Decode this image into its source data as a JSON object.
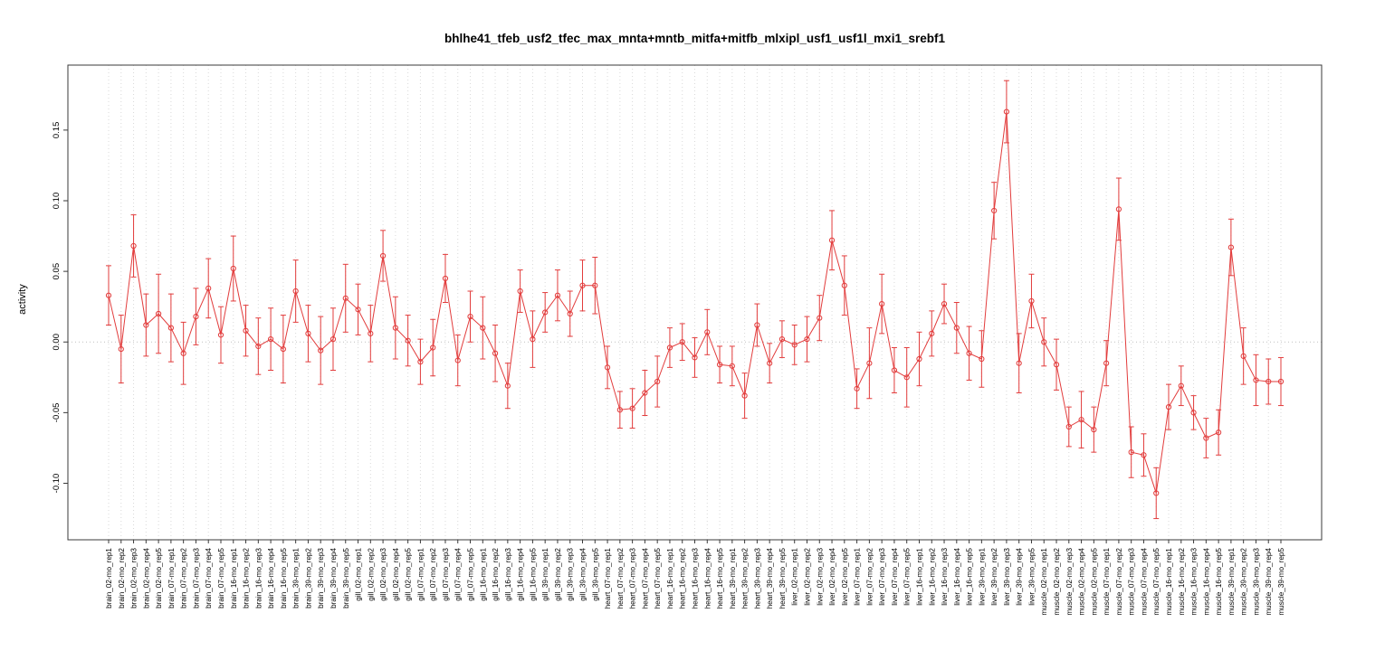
{
  "chart_data": {
    "type": "line",
    "title": "bhlhe41_tfeb_usf2_tfec_max_mnta+mntb_mitfa+mitfb_mlxipl_usf1_usf1l_mxi1_srebf1",
    "xlabel": "",
    "ylabel": "activity",
    "ylim": [
      -0.14,
      0.196
    ],
    "yticks": [
      -0.1,
      -0.05,
      0.0,
      0.05,
      0.1,
      0.15
    ],
    "ytick_labels": [
      "-0.10",
      "-0.05",
      "0.00",
      "0.05",
      "0.10",
      "0.15"
    ],
    "grid": "vertical-dotted-per-category, dotted-zero-line",
    "legend_position": "none",
    "series_color": "#e23c3c",
    "gridline_color": "#d9d9d9",
    "zero_line_color": "#bfbfbf",
    "axis_color": "#3a3a3a",
    "marker": "open-circle",
    "error_bars": true,
    "categories": [
      "brain_02-mo_rep1",
      "brain_02-mo_rep2",
      "brain_02-mo_rep3",
      "brain_02-mo_rep4",
      "brain_02-mo_rep5",
      "brain_07-mo_rep1",
      "brain_07-mo_rep2",
      "brain_07-mo_rep3",
      "brain_07-mo_rep4",
      "brain_07-mo_rep5",
      "brain_16-mo_rep1",
      "brain_16-mo_rep2",
      "brain_16-mo_rep3",
      "brain_16-mo_rep4",
      "brain_16-mo_rep5",
      "brain_39-mo_rep1",
      "brain_39-mo_rep2",
      "brain_39-mo_rep3",
      "brain_39-mo_rep4",
      "brain_39-mo_rep5",
      "gill_02-mo_rep1",
      "gill_02-mo_rep2",
      "gill_02-mo_rep3",
      "gill_02-mo_rep4",
      "gill_02-mo_rep5",
      "gill_07-mo_rep1",
      "gill_07-mo_rep2",
      "gill_07-mo_rep3",
      "gill_07-mo_rep4",
      "gill_07-mo_rep5",
      "gill_16-mo_rep1",
      "gill_16-mo_rep2",
      "gill_16-mo_rep3",
      "gill_16-mo_rep4",
      "gill_16-mo_rep5",
      "gill_39-mo_rep1",
      "gill_39-mo_rep2",
      "gill_39-mo_rep3",
      "gill_39-mo_rep4",
      "gill_39-mo_rep5",
      "heart_07-mo_rep1",
      "heart_07-mo_rep2",
      "heart_07-mo_rep3",
      "heart_07-mo_rep4",
      "heart_07-mo_rep5",
      "heart_16-mo_rep1",
      "heart_16-mo_rep2",
      "heart_16-mo_rep3",
      "heart_16-mo_rep4",
      "heart_16-mo_rep5",
      "heart_39-mo_rep1",
      "heart_39-mo_rep2",
      "heart_39-mo_rep3",
      "heart_39-mo_rep4",
      "heart_39-mo_rep5",
      "liver_02-mo_rep1",
      "liver_02-mo_rep2",
      "liver_02-mo_rep3",
      "liver_02-mo_rep4",
      "liver_02-mo_rep5",
      "liver_07-mo_rep1",
      "liver_07-mo_rep2",
      "liver_07-mo_rep3",
      "liver_07-mo_rep4",
      "liver_07-mo_rep5",
      "liver_16-mo_rep1",
      "liver_16-mo_rep2",
      "liver_16-mo_rep3",
      "liver_16-mo_rep4",
      "liver_16-mo_rep5",
      "liver_39-mo_rep1",
      "liver_39-mo_rep2",
      "liver_39-mo_rep3",
      "liver_39-mo_rep4",
      "liver_39-mo_rep5",
      "muscle_02-mo_rep1",
      "muscle_02-mo_rep2",
      "muscle_02-mo_rep3",
      "muscle_02-mo_rep4",
      "muscle_02-mo_rep5",
      "muscle_07-mo_rep1",
      "muscle_07-mo_rep2",
      "muscle_07-mo_rep3",
      "muscle_07-mo_rep4",
      "muscle_07-mo_rep5",
      "muscle_16-mo_rep1",
      "muscle_16-mo_rep2",
      "muscle_16-mo_rep3",
      "muscle_16-mo_rep4",
      "muscle_16-mo_rep5",
      "muscle_39-mo_rep1",
      "muscle_39-mo_rep2",
      "muscle_39-mo_rep3",
      "muscle_39-mo_rep4",
      "muscle_39-mo_rep5"
    ],
    "values": [
      0.033,
      -0.005,
      0.068,
      0.012,
      0.02,
      0.01,
      -0.008,
      0.018,
      0.038,
      0.005,
      0.052,
      0.008,
      -0.003,
      0.002,
      -0.005,
      0.036,
      0.006,
      -0.006,
      0.002,
      0.031,
      0.023,
      0.006,
      0.061,
      0.01,
      0.001,
      -0.014,
      -0.004,
      0.045,
      -0.013,
      0.018,
      0.01,
      -0.008,
      -0.031,
      0.036,
      0.002,
      0.021,
      0.033,
      0.02,
      0.04,
      0.04,
      -0.018,
      -0.048,
      -0.047,
      -0.036,
      -0.028,
      -0.004,
      0.0,
      -0.011,
      0.007,
      -0.016,
      -0.017,
      -0.038,
      0.012,
      -0.015,
      0.002,
      -0.002,
      0.002,
      0.017,
      0.072,
      0.04,
      -0.033,
      -0.015,
      0.027,
      -0.02,
      -0.025,
      -0.012,
      0.006,
      0.027,
      0.01,
      -0.008,
      -0.012,
      0.093,
      0.163,
      -0.015,
      0.029,
      0.0,
      -0.016,
      -0.06,
      -0.055,
      -0.062,
      -0.015,
      0.094,
      -0.078,
      -0.08,
      -0.107,
      -0.046,
      -0.031,
      -0.05,
      -0.068,
      -0.064,
      0.067,
      -0.01,
      -0.027,
      -0.028,
      -0.028
    ],
    "errors": [
      0.021,
      0.024,
      0.022,
      0.022,
      0.028,
      0.024,
      0.022,
      0.02,
      0.021,
      0.02,
      0.023,
      0.018,
      0.02,
      0.022,
      0.024,
      0.022,
      0.02,
      0.024,
      0.022,
      0.024,
      0.018,
      0.02,
      0.018,
      0.022,
      0.018,
      0.016,
      0.02,
      0.017,
      0.018,
      0.018,
      0.022,
      0.02,
      0.016,
      0.015,
      0.02,
      0.014,
      0.018,
      0.016,
      0.018,
      0.02,
      0.015,
      0.013,
      0.014,
      0.016,
      0.018,
      0.014,
      0.013,
      0.014,
      0.016,
      0.013,
      0.014,
      0.016,
      0.015,
      0.014,
      0.013,
      0.014,
      0.016,
      0.016,
      0.021,
      0.021,
      0.014,
      0.025,
      0.021,
      0.016,
      0.021,
      0.019,
      0.016,
      0.014,
      0.018,
      0.019,
      0.02,
      0.02,
      0.022,
      0.021,
      0.019,
      0.017,
      0.018,
      0.014,
      0.02,
      0.016,
      0.016,
      0.022,
      0.018,
      0.015,
      0.018,
      0.016,
      0.014,
      0.012,
      0.014,
      0.016,
      0.02,
      0.02,
      0.018,
      0.016,
      0.017
    ]
  }
}
